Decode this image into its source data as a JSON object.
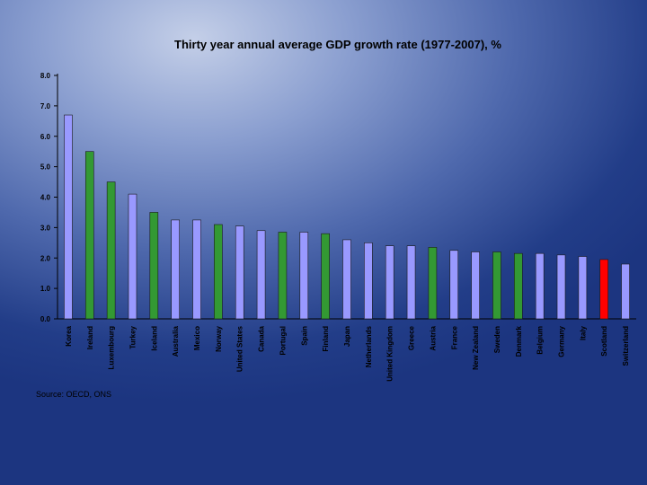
{
  "chart_data": {
    "type": "bar",
    "title": "Thirty year annual average GDP growth rate (1977-2007), %",
    "xlabel": "",
    "ylabel": "",
    "ylim": [
      0,
      8
    ],
    "yticks": [
      "0.0",
      "1.0",
      "2.0",
      "3.0",
      "4.0",
      "5.0",
      "6.0",
      "7.0",
      "8.0"
    ],
    "categories": [
      "Korea",
      "Ireland",
      "Luxembourg",
      "Turkey",
      "Iceland",
      "Australia",
      "Mexico",
      "Norway",
      "United States",
      "Canada",
      "Portugal",
      "Spain",
      "Finland",
      "Japan",
      "Netherlands",
      "United Kingdom",
      "Greece",
      "Austria",
      "France",
      "New Zealand",
      "Sweden",
      "Denmark",
      "Belgium",
      "Germany",
      "Italy",
      "Scotland",
      "Switzerland"
    ],
    "values": [
      6.7,
      5.5,
      4.5,
      4.1,
      3.5,
      3.25,
      3.25,
      3.1,
      3.05,
      2.9,
      2.85,
      2.85,
      2.8,
      2.6,
      2.5,
      2.4,
      2.4,
      2.35,
      2.25,
      2.2,
      2.2,
      2.15,
      2.15,
      2.1,
      2.05,
      1.95,
      1.8
    ],
    "groups": [
      "blue",
      "green",
      "green",
      "blue",
      "green",
      "blue",
      "blue",
      "green",
      "blue",
      "blue",
      "green",
      "blue",
      "green",
      "blue",
      "blue",
      "blue",
      "blue",
      "green",
      "blue",
      "blue",
      "green",
      "green",
      "blue",
      "blue",
      "blue",
      "red",
      "blue"
    ],
    "colors": {
      "blue": "#9999ff",
      "green": "#339933",
      "red": "#ff0000",
      "axis": "#000000"
    }
  },
  "source": "Source: OECD, ONS"
}
